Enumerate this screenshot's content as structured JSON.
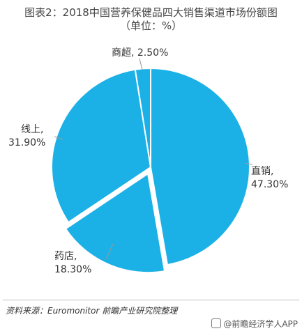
{
  "chart_data": {
    "type": "pie",
    "title": "图表2：2018中国营养保健品四大销售渠道市场份额图",
    "subtitle": "（单位：%）",
    "slices": [
      {
        "label": "直销,",
        "value": 47.3,
        "value_text": "47.30%"
      },
      {
        "label": "药店,",
        "value": 18.3,
        "value_text": "18.30%"
      },
      {
        "label": "线上,",
        "value": 31.9,
        "value_text": "31.90%"
      },
      {
        "label": "商超,",
        "value": 2.5,
        "value_text": "2.50%"
      }
    ],
    "colors": {
      "slice": "#1cb1e6",
      "edge": "#ffffff",
      "leader": "#999999"
    }
  },
  "source": "资料来源：Euromonitor 前瞻产业研究院整理",
  "watermark": "@前瞻经济学人APP"
}
